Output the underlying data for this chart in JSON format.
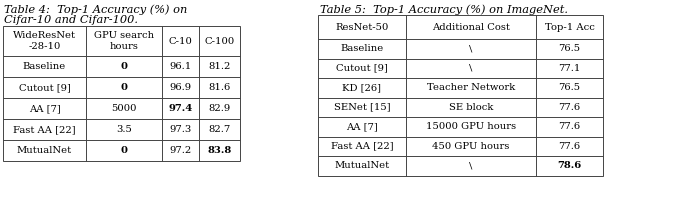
{
  "table4_caption_line1": "Table 4:  Top-1 Accuracy (%) on",
  "table4_caption_line2": "Cifar-10 and Cifar-100.",
  "table4_headers": [
    "WideResNet\n-28-10",
    "GPU search\nhours",
    "C-10",
    "C-100"
  ],
  "table4_rows": [
    [
      "Baseline",
      "0",
      "96.1",
      "81.2",
      false,
      true,
      false,
      false
    ],
    [
      "Cutout [9]",
      "0",
      "96.9",
      "81.6",
      false,
      true,
      false,
      false
    ],
    [
      "AA [7]",
      "5000",
      "97.4",
      "82.9",
      false,
      false,
      true,
      false
    ],
    [
      "Fast AA [22]",
      "3.5",
      "97.3",
      "82.7",
      false,
      false,
      false,
      false
    ],
    [
      "MutualNet",
      "0",
      "97.2",
      "83.8",
      false,
      true,
      false,
      true
    ]
  ],
  "table5_caption": "Table 5:  Top-1 Accuracy (%) on ImageNet.",
  "table5_headers": [
    "ResNet-50",
    "Additional Cost",
    "Top-1 Acc"
  ],
  "table5_rows": [
    [
      "Baseline",
      "\\",
      "76.5",
      false,
      false,
      false
    ],
    [
      "Cutout [9]",
      "\\",
      "77.1",
      false,
      false,
      false
    ],
    [
      "KD [26]",
      "Teacher Network",
      "76.5",
      false,
      false,
      false
    ],
    [
      "SENet [15]",
      "SE block",
      "77.6",
      false,
      false,
      false
    ],
    [
      "AA [7]",
      "15000 GPU hours",
      "77.6",
      false,
      false,
      false
    ],
    [
      "Fast AA [22]",
      "450 GPU hours",
      "77.6",
      false,
      false,
      false
    ],
    [
      "MutualNet",
      "\\",
      "78.6",
      false,
      false,
      true
    ]
  ],
  "bg_color": "#ffffff",
  "text_color": "#000000",
  "line_color": "#444444",
  "font_size": 7.2,
  "caption_font_size": 8.2
}
